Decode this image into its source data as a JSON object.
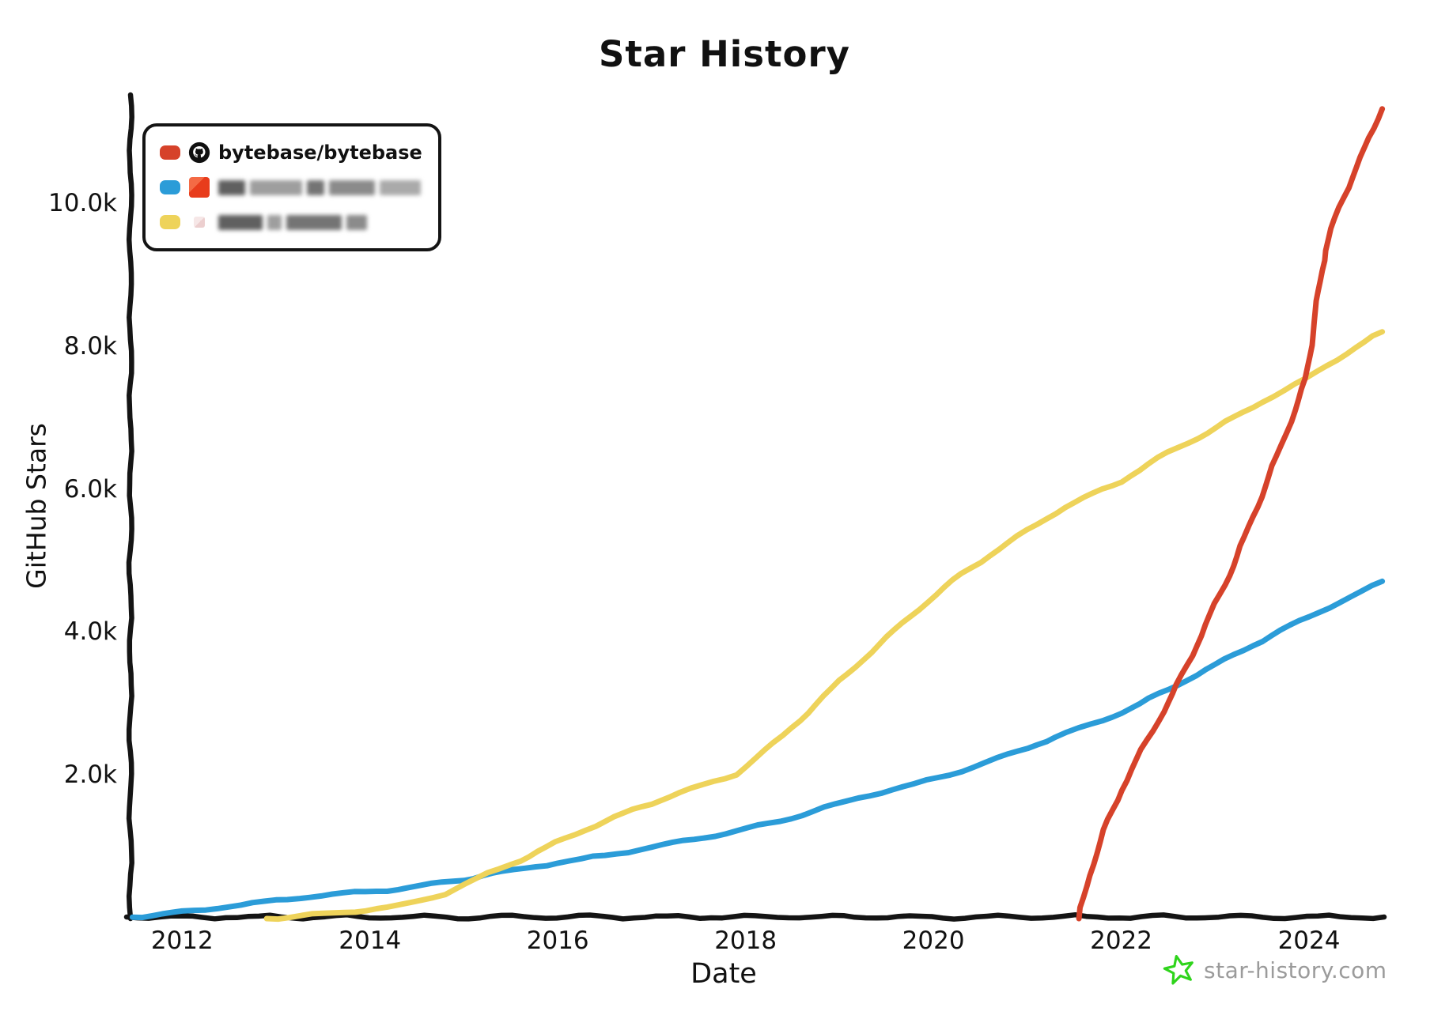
{
  "chart_data": {
    "type": "line",
    "title": "Star History",
    "xlabel": "Date",
    "ylabel": "GitHub Stars",
    "x_range": [
      2011.45,
      2024.8
    ],
    "y_range": [
      0,
      11470
    ],
    "grid": false,
    "legend_position": "top-left",
    "x_ticks": [
      {
        "v": 2012,
        "label": "2012"
      },
      {
        "v": 2014,
        "label": "2014"
      },
      {
        "v": 2016,
        "label": "2016"
      },
      {
        "v": 2018,
        "label": "2018"
      },
      {
        "v": 2020,
        "label": "2020"
      },
      {
        "v": 2022,
        "label": "2022"
      },
      {
        "v": 2024,
        "label": "2024"
      }
    ],
    "y_ticks": [
      {
        "v": 2000,
        "label": "2.0k"
      },
      {
        "v": 4000,
        "label": "4.0k"
      },
      {
        "v": 6000,
        "label": "6.0k"
      },
      {
        "v": 8000,
        "label": "8.0k"
      },
      {
        "v": 10000,
        "label": "10.0k"
      }
    ],
    "series": [
      {
        "key": "repo-blue-blurred",
        "name": null,
        "blurred": true,
        "color": "#2b9cd8",
        "points": [
          [
            2011.47,
            20
          ],
          [
            2012.0,
            90
          ],
          [
            2012.5,
            170
          ],
          [
            2013.0,
            250
          ],
          [
            2013.6,
            340
          ],
          [
            2014.3,
            410
          ],
          [
            2015.0,
            550
          ],
          [
            2015.3,
            630
          ],
          [
            2016.0,
            780
          ],
          [
            2016.5,
            880
          ],
          [
            2017.0,
            1000
          ],
          [
            2017.9,
            1220
          ],
          [
            2018.6,
            1450
          ],
          [
            2019.2,
            1690
          ],
          [
            2019.8,
            1880
          ],
          [
            2020.3,
            2070
          ],
          [
            2020.8,
            2290
          ],
          [
            2021.3,
            2540
          ],
          [
            2021.8,
            2770
          ],
          [
            2022.2,
            3000
          ],
          [
            2022.6,
            3270
          ],
          [
            2023.1,
            3620
          ],
          [
            2023.6,
            3960
          ],
          [
            2024.1,
            4290
          ],
          [
            2024.45,
            4500
          ],
          [
            2024.78,
            4720
          ]
        ]
      },
      {
        "key": "repo-yellow-blurred",
        "name": null,
        "blurred": true,
        "color": "#eed35a",
        "points": [
          [
            2012.9,
            0
          ],
          [
            2013.5,
            60
          ],
          [
            2014.3,
            170
          ],
          [
            2014.8,
            350
          ],
          [
            2015.26,
            630
          ],
          [
            2015.6,
            820
          ],
          [
            2015.87,
            990
          ],
          [
            2016.3,
            1250
          ],
          [
            2016.8,
            1520
          ],
          [
            2017.3,
            1760
          ],
          [
            2017.9,
            2020
          ],
          [
            2018.4,
            2560
          ],
          [
            2019.0,
            3320
          ],
          [
            2019.76,
            4240
          ],
          [
            2020.3,
            4820
          ],
          [
            2020.8,
            5260
          ],
          [
            2021.4,
            5760
          ],
          [
            2022.0,
            6120
          ],
          [
            2022.5,
            6520
          ],
          [
            2022.92,
            6800
          ],
          [
            2023.5,
            7230
          ],
          [
            2023.97,
            7550
          ],
          [
            2024.4,
            7920
          ],
          [
            2024.78,
            8210
          ]
        ]
      },
      {
        "key": "bytebase-bytebase",
        "name": "bytebase/bytebase",
        "blurred": false,
        "color": "#d6422a",
        "points": [
          [
            2021.55,
            0
          ],
          [
            2021.66,
            600
          ],
          [
            2021.82,
            1240
          ],
          [
            2022.0,
            1800
          ],
          [
            2022.22,
            2360
          ],
          [
            2022.45,
            2900
          ],
          [
            2022.6,
            3270
          ],
          [
            2022.8,
            3820
          ],
          [
            2023.0,
            4400
          ],
          [
            2023.15,
            4800
          ],
          [
            2023.4,
            5620
          ],
          [
            2023.66,
            6470
          ],
          [
            2023.85,
            7120
          ],
          [
            2023.97,
            7550
          ],
          [
            2024.07,
            8500
          ],
          [
            2024.17,
            9350
          ],
          [
            2024.32,
            9950
          ],
          [
            2024.55,
            10650
          ],
          [
            2024.78,
            11330
          ]
        ]
      }
    ]
  },
  "legend": {
    "items": [
      {
        "label": "bytebase/bytebase",
        "swatch_color": "#d6422a",
        "icon": "github-octocat-icon",
        "blurred": false
      },
      {
        "label": null,
        "swatch_color": "#2b9cd8",
        "icon": "avatar-red-icon",
        "blurred": true,
        "blur_segments": [
          34,
          66,
          22,
          58,
          52
        ]
      },
      {
        "label": null,
        "swatch_color": "#eed35a",
        "icon": "avatar-pink-icon",
        "blurred": true,
        "blur_segments": [
          56,
          18,
          70,
          26
        ]
      }
    ]
  },
  "watermark": {
    "text": "star-history.com",
    "text_color": "#9b9b9b",
    "star_color": "#2fd41c"
  },
  "colors": {
    "axis": "#141414",
    "red_line": "#d6422a",
    "blue_line": "#2b9cd8",
    "yellow_line": "#eed35a"
  }
}
